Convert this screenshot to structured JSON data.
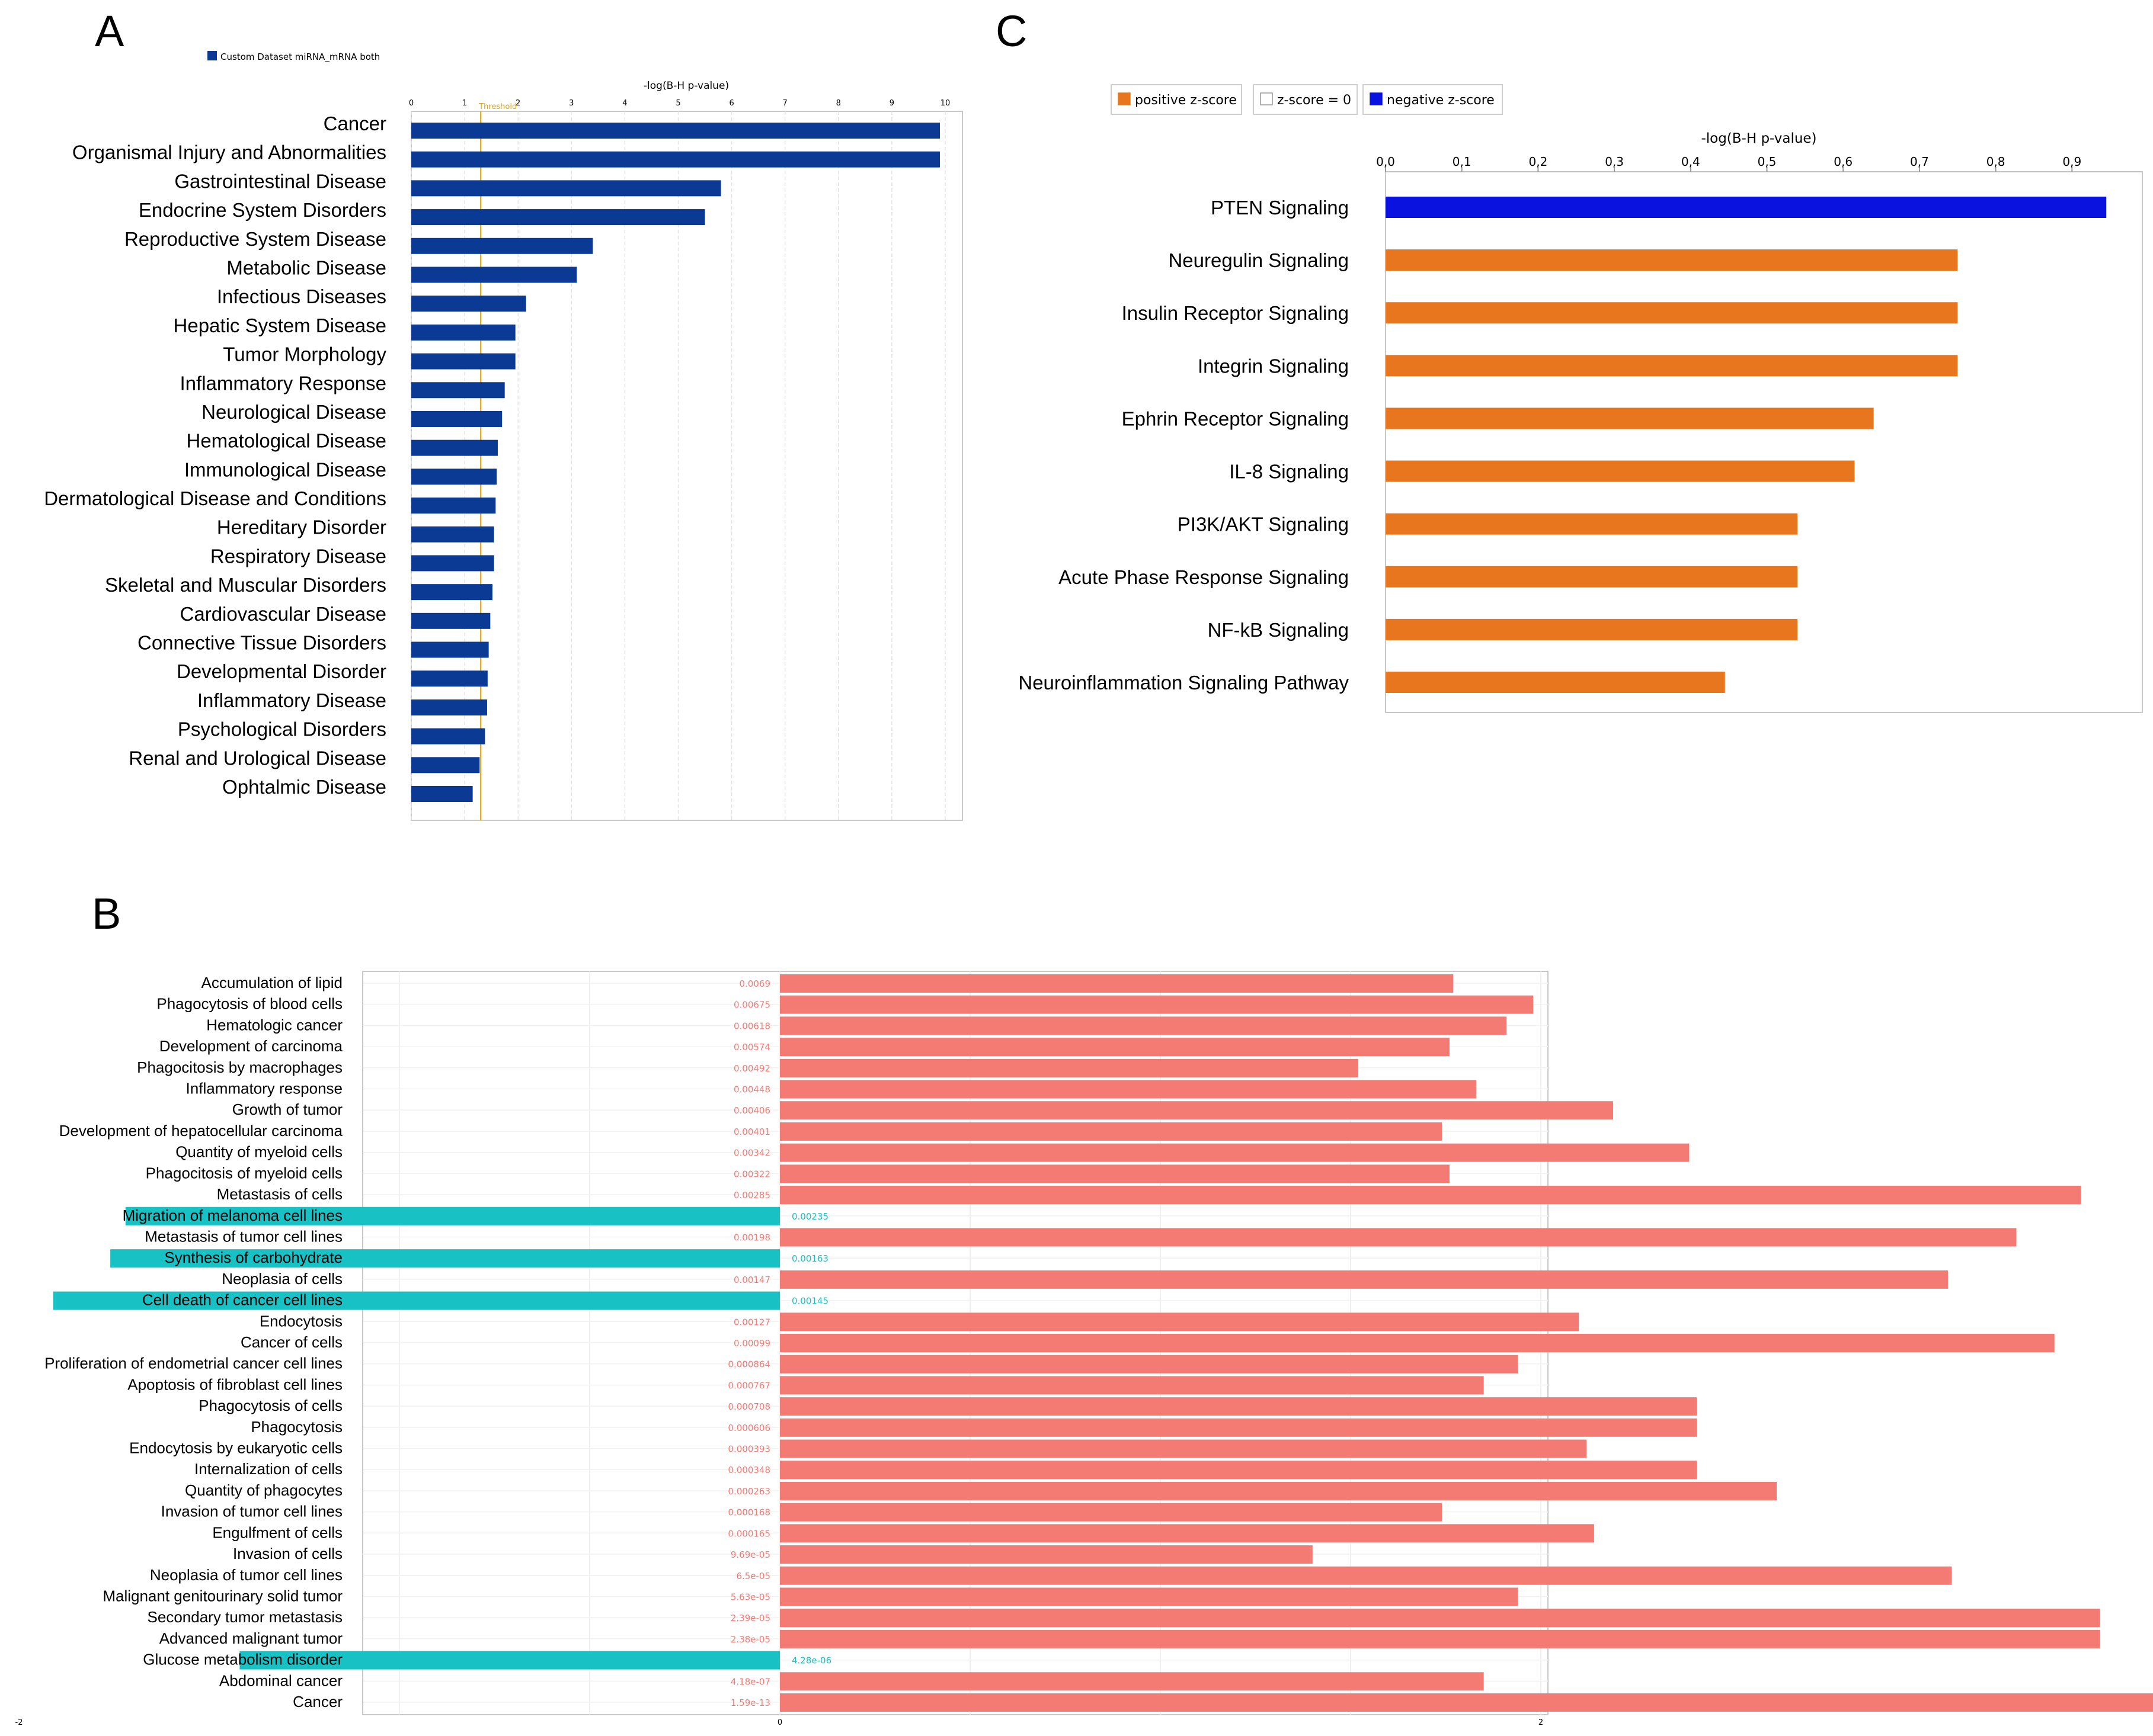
{
  "chart_data": [
    {
      "panel": "A",
      "type": "bar",
      "orientation": "horizontal",
      "xlabel": "-log(B-H p-value)",
      "xlim": [
        0,
        10
      ],
      "ticks": [
        "0",
        "1",
        "2",
        "3",
        "4",
        "5",
        "6",
        "7",
        "8",
        "9",
        "10"
      ],
      "threshold": {
        "value": 1.3,
        "label": "Threshold"
      },
      "legend": {
        "label": "Custom Dataset miRNA_mRNA both",
        "color": "#0b3a94",
        "placement": "top-left"
      },
      "color": "#0b3a94",
      "categories": [
        "Cancer",
        "Organismal Injury and Abnormalities",
        "Gastrointestinal Disease",
        "Endocrine System Disorders",
        "Reproductive System Disease",
        "Metabolic Disease",
        "Infectious Diseases",
        "Hepatic System Disease",
        "Tumor Morphology",
        "Inflammatory Response",
        "Neurological Disease",
        "Hematological Disease",
        "Immunological Disease",
        "Dermatological Disease and Conditions",
        "Hereditary Disorder",
        "Respiratory Disease",
        "Skeletal and Muscular Disorders",
        "Cardiovascular Disease",
        "Connective Tissue Disorders",
        "Developmental Disorder",
        "Inflammatory Disease",
        "Psychological Disorders",
        "Renal and Urological Disease",
        "Ophtalmic Disease"
      ],
      "values": [
        9.9,
        9.9,
        5.8,
        5.5,
        3.4,
        3.1,
        2.15,
        1.95,
        1.95,
        1.75,
        1.7,
        1.62,
        1.6,
        1.58,
        1.55,
        1.55,
        1.52,
        1.48,
        1.45,
        1.43,
        1.42,
        1.38,
        1.28,
        1.15
      ]
    },
    {
      "panel": "C",
      "type": "bar",
      "orientation": "horizontal",
      "xlabel": "-log(B-H p-value)",
      "xlim": [
        0,
        1.0
      ],
      "ticks": [
        "0,0",
        "0,1",
        "0,2",
        "0,3",
        "0,4",
        "0,5",
        "0,6",
        "0,7",
        "0,8",
        "0,9"
      ],
      "legend": [
        {
          "label": "positive z-score",
          "color": "#e8761e"
        },
        {
          "label": "z-score = 0",
          "color": "#ffffff"
        },
        {
          "label": "negative z-score",
          "color": "#0a12e0"
        }
      ],
      "categories": [
        "PTEN Signaling",
        "Neuregulin Signaling",
        "Insulin Receptor Signaling",
        "Integrin Signaling",
        "Ephrin Receptor Signaling",
        "IL-8 Signaling",
        "PI3K/AKT Signaling",
        "Acute Phase Response Signaling",
        "NF-kB Signaling",
        "Neuroinflammation Signaling Pathway"
      ],
      "values": [
        0.945,
        0.75,
        0.75,
        0.75,
        0.64,
        0.615,
        0.54,
        0.54,
        0.54,
        0.445
      ],
      "colors": [
        "#0a12e0",
        "#e8761e",
        "#e8761e",
        "#e8761e",
        "#e8761e",
        "#e8761e",
        "#e8761e",
        "#e8761e",
        "#e8761e",
        "#e8761e"
      ]
    },
    {
      "panel": "B",
      "type": "bar",
      "orientation": "horizontal",
      "xlim": [
        -2,
        4
      ],
      "ticks": [
        "-2",
        "0",
        "2",
        "4"
      ],
      "colors": {
        "positive": "#f47a74",
        "negative": "#18c2c4"
      },
      "categories": [
        "Accumulation of lipid",
        "Phagocytosis of blood cells",
        "Hematologic cancer",
        "Development of carcinoma",
        "Phagocitosis by macrophages",
        "Inflammatory response",
        "Growth of tumor",
        "Development of hepatocellular carcinoma",
        "Quantity of myeloid cells",
        "Phagocitosis of myeloid cells",
        "Metastasis of cells",
        "Migration of melanoma cell lines",
        "Metastasis of tumor cell lines",
        "Synthesis of carbohydrate",
        "Neoplasia of cells",
        "Cell death of cancer cell lines",
        "Endocytosis",
        "Cancer of cells",
        "Proliferation of endometrial cancer cell lines",
        "Apoptosis of fibroblast cell lines",
        "Phagocytosis of cells",
        "Phagocytosis",
        "Endocytosis by eukaryotic cells",
        "Internalization of cells",
        "Quantity of phagocytes",
        "Invasion of tumor cell lines",
        "Engulfment of cells",
        "Invasion of cells",
        "Neoplasia of tumor cell lines",
        "Malignant genitourinary solid tumor",
        "Secondary tumor metastasis",
        "Advanced malignant tumor",
        "Glucose metabolism disorder",
        "Abdominal cancer",
        "Cancer"
      ],
      "values": [
        1.77,
        1.98,
        1.91,
        1.76,
        1.52,
        1.83,
        2.19,
        1.74,
        2.39,
        1.76,
        3.42,
        -1.72,
        3.25,
        -1.76,
        3.07,
        -1.91,
        2.1,
        3.35,
        1.94,
        1.85,
        2.41,
        2.41,
        2.12,
        2.41,
        2.62,
        1.74,
        2.14,
        1.4,
        3.08,
        1.94,
        3.47,
        3.47,
        -1.42,
        1.85,
        3.77
      ],
      "data_labels": [
        "0.0069",
        "0.00675",
        "0.00618",
        "0.00574",
        "0.00492",
        "0.00448",
        "0.00406",
        "0.00401",
        "0.00342",
        "0.00322",
        "0.00285",
        "0.00235",
        "0.00198",
        "0.00163",
        "0.00147",
        "0.00145",
        "0.00127",
        "0.00099",
        "0.000864",
        "0.000767",
        "0.000708",
        "0.000606",
        "0.000393",
        "0.000348",
        "0.000263",
        "0.000168",
        "0.000165",
        "9.69e-05",
        "6.5e-05",
        "5.63e-05",
        "2.39e-05",
        "2.38e-05",
        "4.28e-06",
        "4.18e-07",
        "1.59e-13"
      ]
    }
  ],
  "panels": {
    "A": "A",
    "B": "B",
    "C": "C"
  }
}
